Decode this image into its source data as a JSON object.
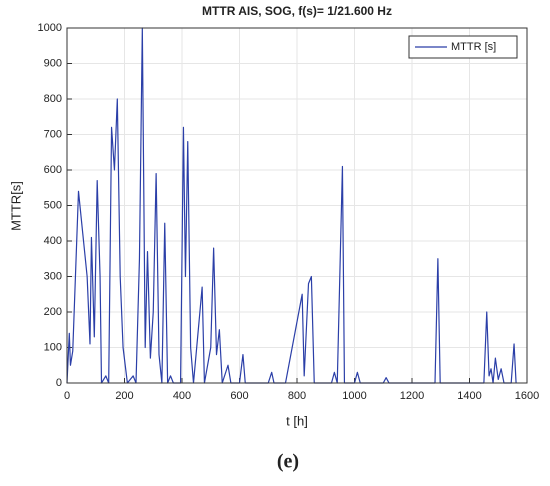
{
  "chart_data": {
    "type": "line",
    "title": "MTTR AIS, SOG, f(s)= 1/21.600 Hz",
    "x_label": "t [h]",
    "y_label": "MTTR[s]",
    "panel_label": "(e)",
    "xlim": [
      0,
      1600
    ],
    "ylim": [
      0,
      1000
    ],
    "xticks": [
      0,
      200,
      400,
      600,
      800,
      1000,
      1200,
      1400,
      1600
    ],
    "yticks": [
      0,
      100,
      200,
      300,
      400,
      500,
      600,
      700,
      800,
      900,
      1000
    ],
    "grid": true,
    "legend": "top-right",
    "series": [
      {
        "name": "MTTR [s]",
        "color": "#2b3fa8",
        "x": [
          0,
          8,
          12,
          20,
          40,
          55,
          70,
          80,
          85,
          95,
          105,
          115,
          120,
          135,
          145,
          155,
          165,
          175,
          185,
          195,
          210,
          230,
          240,
          252,
          262,
          272,
          280,
          290,
          300,
          310,
          320,
          330,
          340,
          350,
          360,
          370,
          395,
          405,
          412,
          420,
          430,
          440,
          470,
          478,
          500,
          510,
          520,
          530,
          540,
          560,
          570,
          600,
          612,
          620,
          700,
          712,
          720,
          760,
          818,
          825,
          840,
          850,
          860,
          920,
          930,
          940,
          958,
          965,
          1000,
          1010,
          1020,
          1100,
          1110,
          1120,
          1280,
          1290,
          1298,
          1450,
          1460,
          1468,
          1475,
          1482,
          1490,
          1500,
          1510,
          1520,
          1545,
          1555,
          1562
        ],
        "values": [
          0,
          140,
          50,
          90,
          540,
          420,
          300,
          110,
          410,
          130,
          570,
          300,
          0,
          20,
          0,
          720,
          600,
          800,
          300,
          100,
          0,
          20,
          0,
          350,
          1000,
          100,
          370,
          70,
          200,
          590,
          80,
          0,
          450,
          0,
          20,
          0,
          0,
          720,
          300,
          680,
          100,
          0,
          270,
          0,
          100,
          380,
          80,
          150,
          0,
          50,
          0,
          0,
          80,
          0,
          0,
          30,
          0,
          0,
          250,
          20,
          280,
          300,
          0,
          0,
          30,
          0,
          610,
          0,
          0,
          30,
          0,
          0,
          15,
          0,
          0,
          350,
          0,
          0,
          200,
          20,
          40,
          0,
          70,
          10,
          40,
          0,
          0,
          110,
          0
        ]
      }
    ]
  }
}
